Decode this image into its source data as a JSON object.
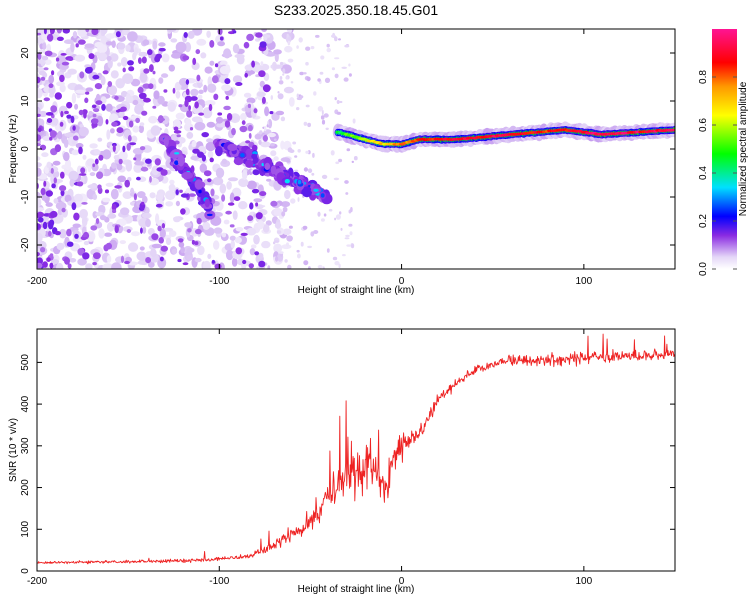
{
  "title": "S233.2025.350.18.45.G01",
  "chart_data": [
    {
      "type": "heatmap",
      "xlabel": "Height of straight line (km)",
      "ylabel": "Frequency (Hz)",
      "xlim": [
        -200,
        150
      ],
      "ylim": [
        -25,
        25
      ],
      "xticks": [
        -200,
        -100,
        0,
        100
      ],
      "xticklabels": [
        "-200",
        "-100",
        "0",
        "100"
      ],
      "yticks": [
        -20,
        -10,
        0,
        10,
        20
      ],
      "yticklabels": [
        "-20",
        "-10",
        "0",
        "10",
        "20"
      ],
      "colorbar": {
        "label": "Normalized spectral amplitude",
        "range": [
          0,
          1
        ],
        "ticks": [
          0.0,
          0.2,
          0.4,
          0.6,
          0.8
        ],
        "ticklabels": [
          "0.0",
          "0.2",
          "0.4",
          "0.6",
          "0.8"
        ]
      },
      "features": {
        "tone_x": [
          -35,
          -20,
          -10,
          0,
          10,
          30,
          60,
          90,
          110,
          150
        ],
        "tone_freq": [
          3.5,
          2.0,
          1.0,
          1.0,
          2.0,
          2.0,
          3.0,
          4.0,
          3.0,
          4.0
        ],
        "tone_amplitude": [
          0.45,
          0.6,
          0.7,
          0.75,
          0.85,
          0.9,
          0.9,
          0.85,
          0.95,
          0.9
        ],
        "streak1_x": [
          -130,
          -105
        ],
        "streak1_freq": [
          2,
          -12
        ],
        "streak2_x": [
          -100,
          -40
        ],
        "streak2_freq": [
          1,
          -10
        ],
        "noise_xlim": [
          -200,
          -80
        ],
        "noise_ylim": [
          -25,
          25
        ]
      }
    },
    {
      "type": "line",
      "xlabel": "Height of straight line (km)",
      "ylabel": "SNR (10 * v/v)",
      "xlim": [
        -200,
        150
      ],
      "ylim": [
        0,
        580
      ],
      "xticks": [
        -200,
        -100,
        0,
        100
      ],
      "xticklabels": [
        "-200",
        "-100",
        "0",
        "100"
      ],
      "yticks": [
        0,
        100,
        200,
        300,
        400,
        500
      ],
      "yticklabels": [
        "0",
        "100",
        "200",
        "300",
        "400",
        "500"
      ],
      "color": "#ee2222",
      "series": [
        {
          "name": "SNR",
          "x": [
            -200,
            -150,
            -120,
            -100,
            -85,
            -75,
            -65,
            -55,
            -45,
            -35,
            -25,
            -15,
            -8,
            -5,
            0,
            5,
            10,
            15,
            20,
            25,
            30,
            40,
            50,
            60,
            80,
            100,
            120,
            150
          ],
          "values": [
            20,
            22,
            25,
            28,
            35,
            50,
            75,
            100,
            150,
            210,
            240,
            250,
            200,
            260,
            300,
            320,
            330,
            370,
            410,
            430,
            450,
            480,
            495,
            505,
            505,
            510,
            515,
            520
          ],
          "spread": [
            10,
            10,
            14,
            14,
            18,
            25,
            40,
            60,
            110,
            160,
            180,
            200,
            180,
            120,
            90,
            70,
            60,
            50,
            40,
            35,
            35,
            35,
            35,
            40,
            40,
            45,
            45,
            40
          ]
        }
      ]
    }
  ]
}
